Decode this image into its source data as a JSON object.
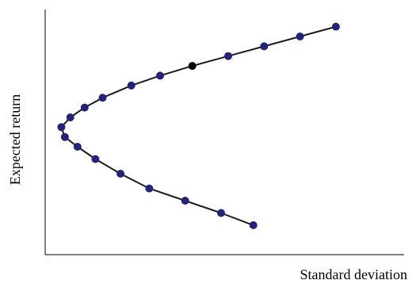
{
  "chart_data": {
    "type": "scatter",
    "title": "",
    "xlabel": "Standard deviation",
    "ylabel": "Expected return",
    "grid": false,
    "legend": "none",
    "xlim": [
      0,
      10
    ],
    "ylim": [
      0,
      10
    ],
    "x_ticks_labeled": false,
    "y_ticks_labeled": false,
    "connected": true,
    "colors": {
      "marker": "#23237a",
      "highlight_marker": "#000000",
      "line": "#1a1a1a",
      "axis": "#000000"
    },
    "series": [
      {
        "points": [
          {
            "x": 5.8,
            "y": 1.2
          },
          {
            "x": 4.9,
            "y": 1.7
          },
          {
            "x": 3.9,
            "y": 2.2
          },
          {
            "x": 2.9,
            "y": 2.7
          },
          {
            "x": 2.1,
            "y": 3.3
          },
          {
            "x": 1.4,
            "y": 3.9
          },
          {
            "x": 0.9,
            "y": 4.4
          },
          {
            "x": 0.55,
            "y": 4.8
          },
          {
            "x": 0.45,
            "y": 5.2
          },
          {
            "x": 0.7,
            "y": 5.6
          },
          {
            "x": 1.1,
            "y": 6.0
          },
          {
            "x": 1.6,
            "y": 6.4
          },
          {
            "x": 2.4,
            "y": 6.9
          },
          {
            "x": 3.2,
            "y": 7.3
          },
          {
            "x": 4.1,
            "y": 7.7,
            "highlight": true
          },
          {
            "x": 5.1,
            "y": 8.1
          },
          {
            "x": 6.1,
            "y": 8.5
          },
          {
            "x": 7.1,
            "y": 8.9
          },
          {
            "x": 8.1,
            "y": 9.3
          }
        ]
      }
    ]
  }
}
